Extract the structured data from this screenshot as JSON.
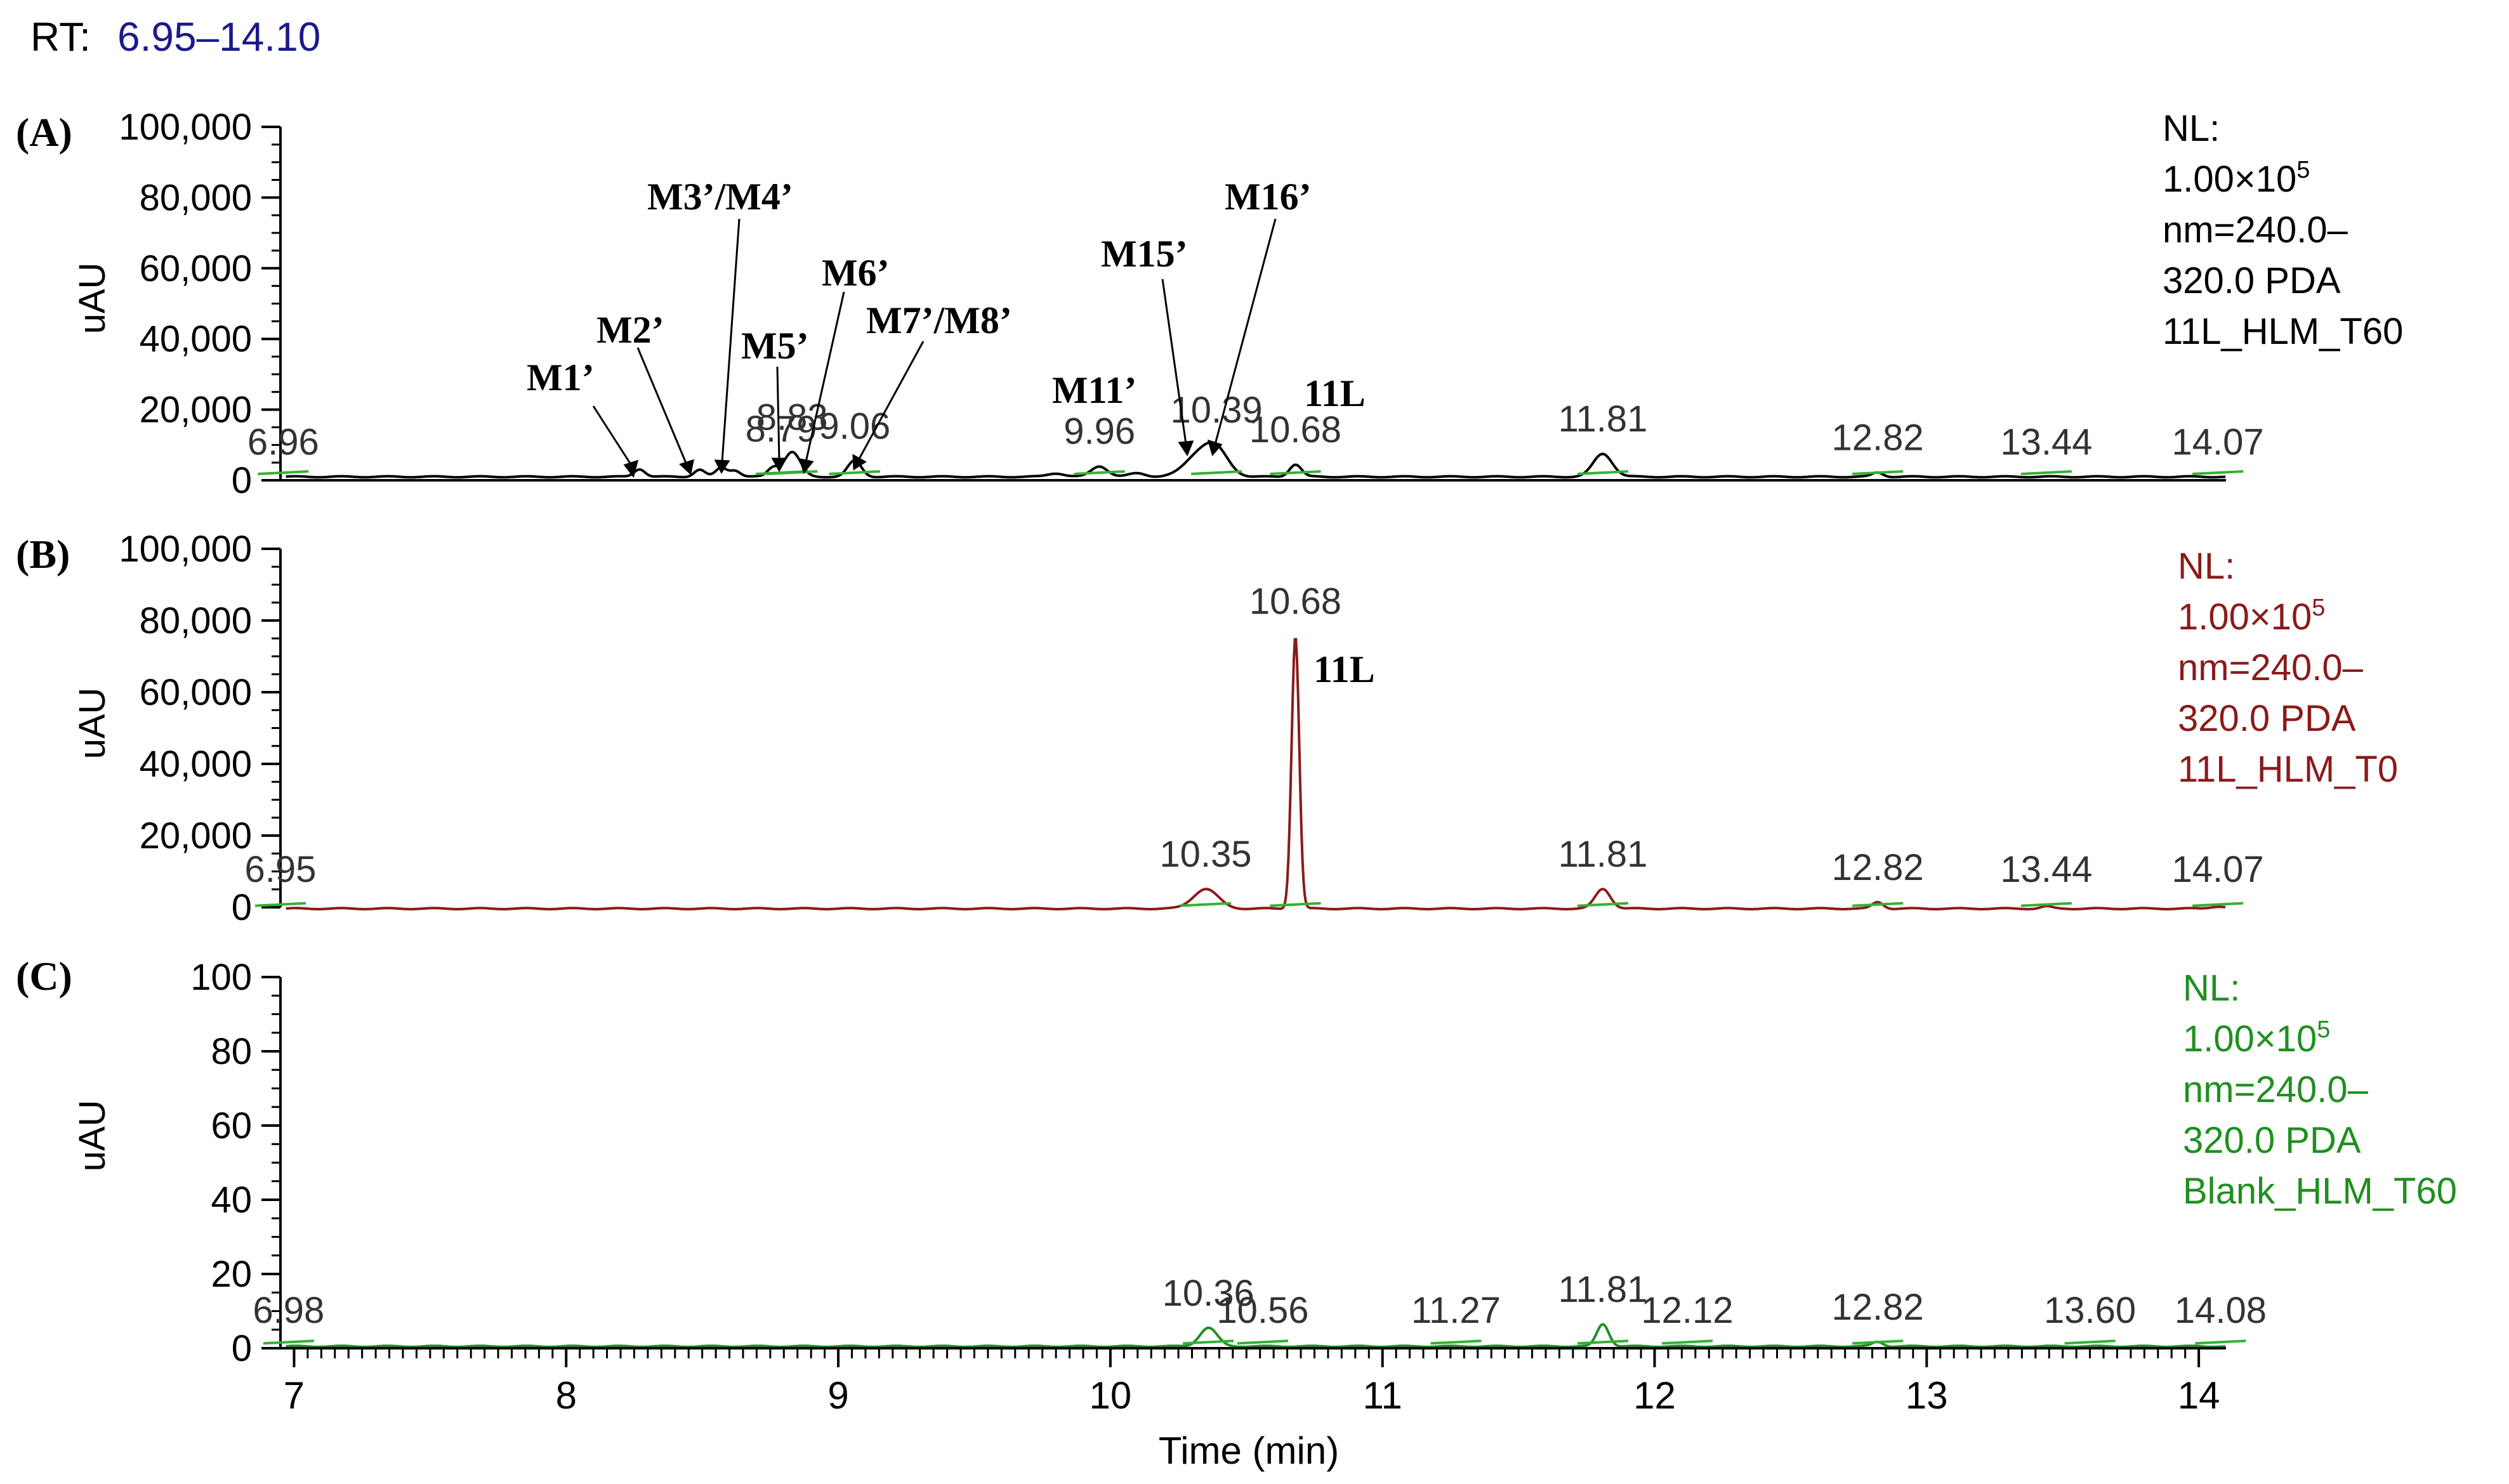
{
  "chart_data": {
    "type": "line",
    "rt_label": "RT:",
    "rt_range": "6.95–14.10",
    "xlabel": "Time (min)",
    "x_ticks": [
      "7",
      "8",
      "9",
      "10",
      "11",
      "12",
      "13",
      "14"
    ],
    "xlim": [
      6.95,
      14.1
    ],
    "colors": {
      "rt": "#1a1a8c",
      "A": "#000000",
      "B": "#8b1a1a",
      "C": "#1f8f1f",
      "baseline": "#35b035"
    },
    "panels": [
      {
        "id": "A",
        "panel_label": "(A)",
        "ylabel": "uAU",
        "ylim": [
          0,
          100000
        ],
        "y_ticks": [
          "100,000",
          "80,000",
          "60,000",
          "40,000",
          "20,000",
          "0"
        ],
        "nl_lines": [
          "NL:",
          "1.00×10",
          "nm=240.0–",
          "320.0 PDA",
          "11L_HLM_T60"
        ],
        "nl_exponent": "5",
        "peak_labels": [
          {
            "x": 6.96,
            "text": "6.96"
          },
          {
            "x": 8.79,
            "text": "8.79"
          },
          {
            "x": 8.83,
            "text": "8.83"
          },
          {
            "x": 9.06,
            "text": "9.06"
          },
          {
            "x": 9.96,
            "text": "9.96"
          },
          {
            "x": 10.39,
            "text": "10.39"
          },
          {
            "x": 10.68,
            "text": "10.68"
          },
          {
            "x": 11.81,
            "text": "11.81"
          },
          {
            "x": 12.82,
            "text": "12.82"
          },
          {
            "x": 13.44,
            "text": "13.44"
          },
          {
            "x": 14.07,
            "text": "14.07"
          }
        ],
        "metabolites": [
          "M1’",
          "M2’",
          "M3’/M4’",
          "M5’",
          "M6’",
          "M7’/M8’",
          "M11’",
          "M15’",
          "M16’",
          "11L"
        ]
      },
      {
        "id": "B",
        "panel_label": "(B)",
        "ylabel": "uAU",
        "ylim": [
          0,
          100000
        ],
        "y_ticks": [
          "100,000",
          "80,000",
          "60,000",
          "40,000",
          "20,000",
          "0"
        ],
        "nl_lines": [
          "NL:",
          "1.00×10",
          "nm=240.0–",
          "320.0 PDA",
          "11L_HLM_T0"
        ],
        "nl_exponent": "5",
        "peak_labels": [
          {
            "x": 6.95,
            "text": "6.95"
          },
          {
            "x": 10.35,
            "text": "10.35"
          },
          {
            "x": 10.68,
            "text": "10.68"
          },
          {
            "x": 11.81,
            "text": "11.81"
          },
          {
            "x": 12.82,
            "text": "12.82"
          },
          {
            "x": 13.44,
            "text": "13.44"
          },
          {
            "x": 14.07,
            "text": "14.07"
          }
        ],
        "compound_label": "11L"
      },
      {
        "id": "C",
        "panel_label": "(C)",
        "ylabel": "uAU",
        "ylim": [
          0,
          100
        ],
        "y_ticks": [
          "100",
          "80",
          "60",
          "40",
          "20",
          "0"
        ],
        "nl_lines": [
          "NL:",
          "1.00×10",
          "nm=240.0–",
          "320.0 PDA",
          "Blank_HLM_T60"
        ],
        "nl_exponent": "5",
        "peak_labels": [
          {
            "x": 6.98,
            "text": "6.98"
          },
          {
            "x": 10.36,
            "text": "10.36"
          },
          {
            "x": 10.56,
            "text": "10.56"
          },
          {
            "x": 11.27,
            "text": "11.27"
          },
          {
            "x": 11.81,
            "text": "11.81"
          },
          {
            "x": 12.12,
            "text": "12.12"
          },
          {
            "x": 12.82,
            "text": "12.82"
          },
          {
            "x": 13.6,
            "text": "13.60"
          },
          {
            "x": 14.08,
            "text": "14.08"
          }
        ]
      }
    ]
  }
}
